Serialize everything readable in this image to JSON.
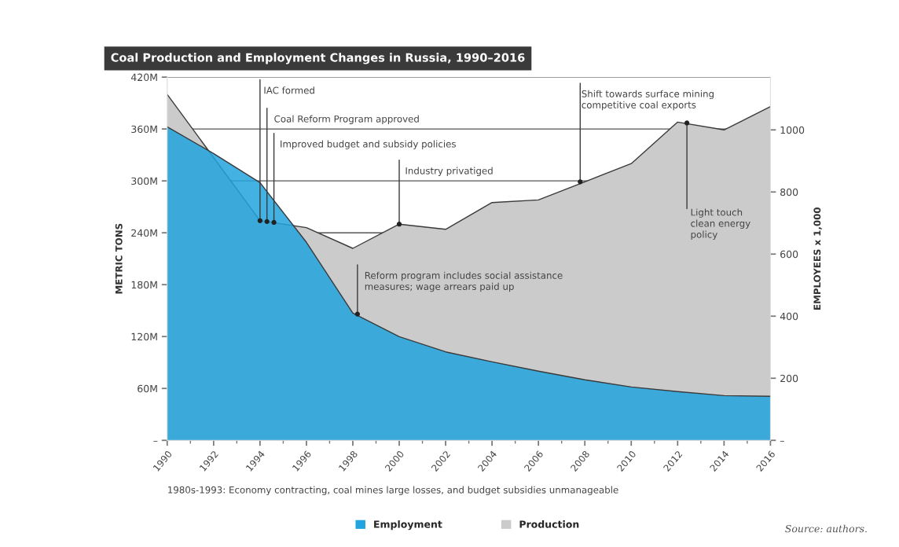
{
  "chart_data": {
    "type": "area",
    "title": "Coal Production and Employment Changes in Russia, 1990–2016",
    "ylabel": "METRIC TONS",
    "y2label": "EMPLOYEES x 1,000",
    "x": [
      1990,
      1992,
      1994,
      1996,
      1998,
      2000,
      2002,
      2004,
      2006,
      2008,
      2010,
      2012,
      2014,
      2016
    ],
    "series": [
      {
        "name": "Production",
        "color": "#cbcbcb",
        "values": [
          400,
          327,
          254,
          246,
          222,
          250,
          244,
          275,
          278,
          299,
          320,
          368,
          359,
          386
        ]
      },
      {
        "name": "Employment",
        "color": "#22a5de",
        "axis": "y2",
        "values": [
          1010,
          924,
          830,
          638,
          410,
          334,
          285,
          253,
          223,
          195,
          172,
          157,
          144,
          142
        ]
      }
    ],
    "xlim": [
      1990,
      2016
    ],
    "xticks": [
      1990,
      1992,
      1994,
      1996,
      1998,
      2000,
      2002,
      2004,
      2006,
      2008,
      2010,
      2012,
      2014,
      2016
    ],
    "ylim": [
      0,
      420
    ],
    "yticks": [
      {
        "value": 0,
        "label": "–"
      },
      {
        "value": 60,
        "label": "60M"
      },
      {
        "value": 120,
        "label": "120M"
      },
      {
        "value": 180,
        "label": "180M"
      },
      {
        "value": 240,
        "label": "240M"
      },
      {
        "value": 300,
        "label": "300M"
      },
      {
        "value": 360,
        "label": "360M"
      },
      {
        "value": 420,
        "label": "420M"
      }
    ],
    "y2lim": [
      0,
      1170
    ],
    "y2ticks": [
      {
        "value": 0,
        "label": "–"
      },
      200,
      400,
      600,
      800,
      1000
    ],
    "grid": "y",
    "legend": "bottom",
    "annotations": [
      {
        "text": "IAC formed",
        "x": 1994,
        "y": 254
      },
      {
        "text": "Coal Reform Program approved",
        "x": 1994.3,
        "y": 253
      },
      {
        "text": "Improved budget and subsidy policies",
        "x": 1994.6,
        "y": 252
      },
      {
        "text": "Industry privatiged",
        "x": 2000,
        "y": 250
      },
      {
        "text": "Reform program includes social assistance\nmeasures; wage arrears paid up",
        "x": 1998.2,
        "y": 146
      },
      {
        "text": "Shift towards surface mining\ncompetitive coal exports",
        "x": 2007.8,
        "y": 299
      },
      {
        "text": "Light touch\nclean energy\npolicy",
        "x": 2012.4,
        "y": 367
      },
      "1980s-1993: Economy contracting, coal mines large losses, and budget subsidies unmanageable",
      "Source: authors."
    ]
  }
}
